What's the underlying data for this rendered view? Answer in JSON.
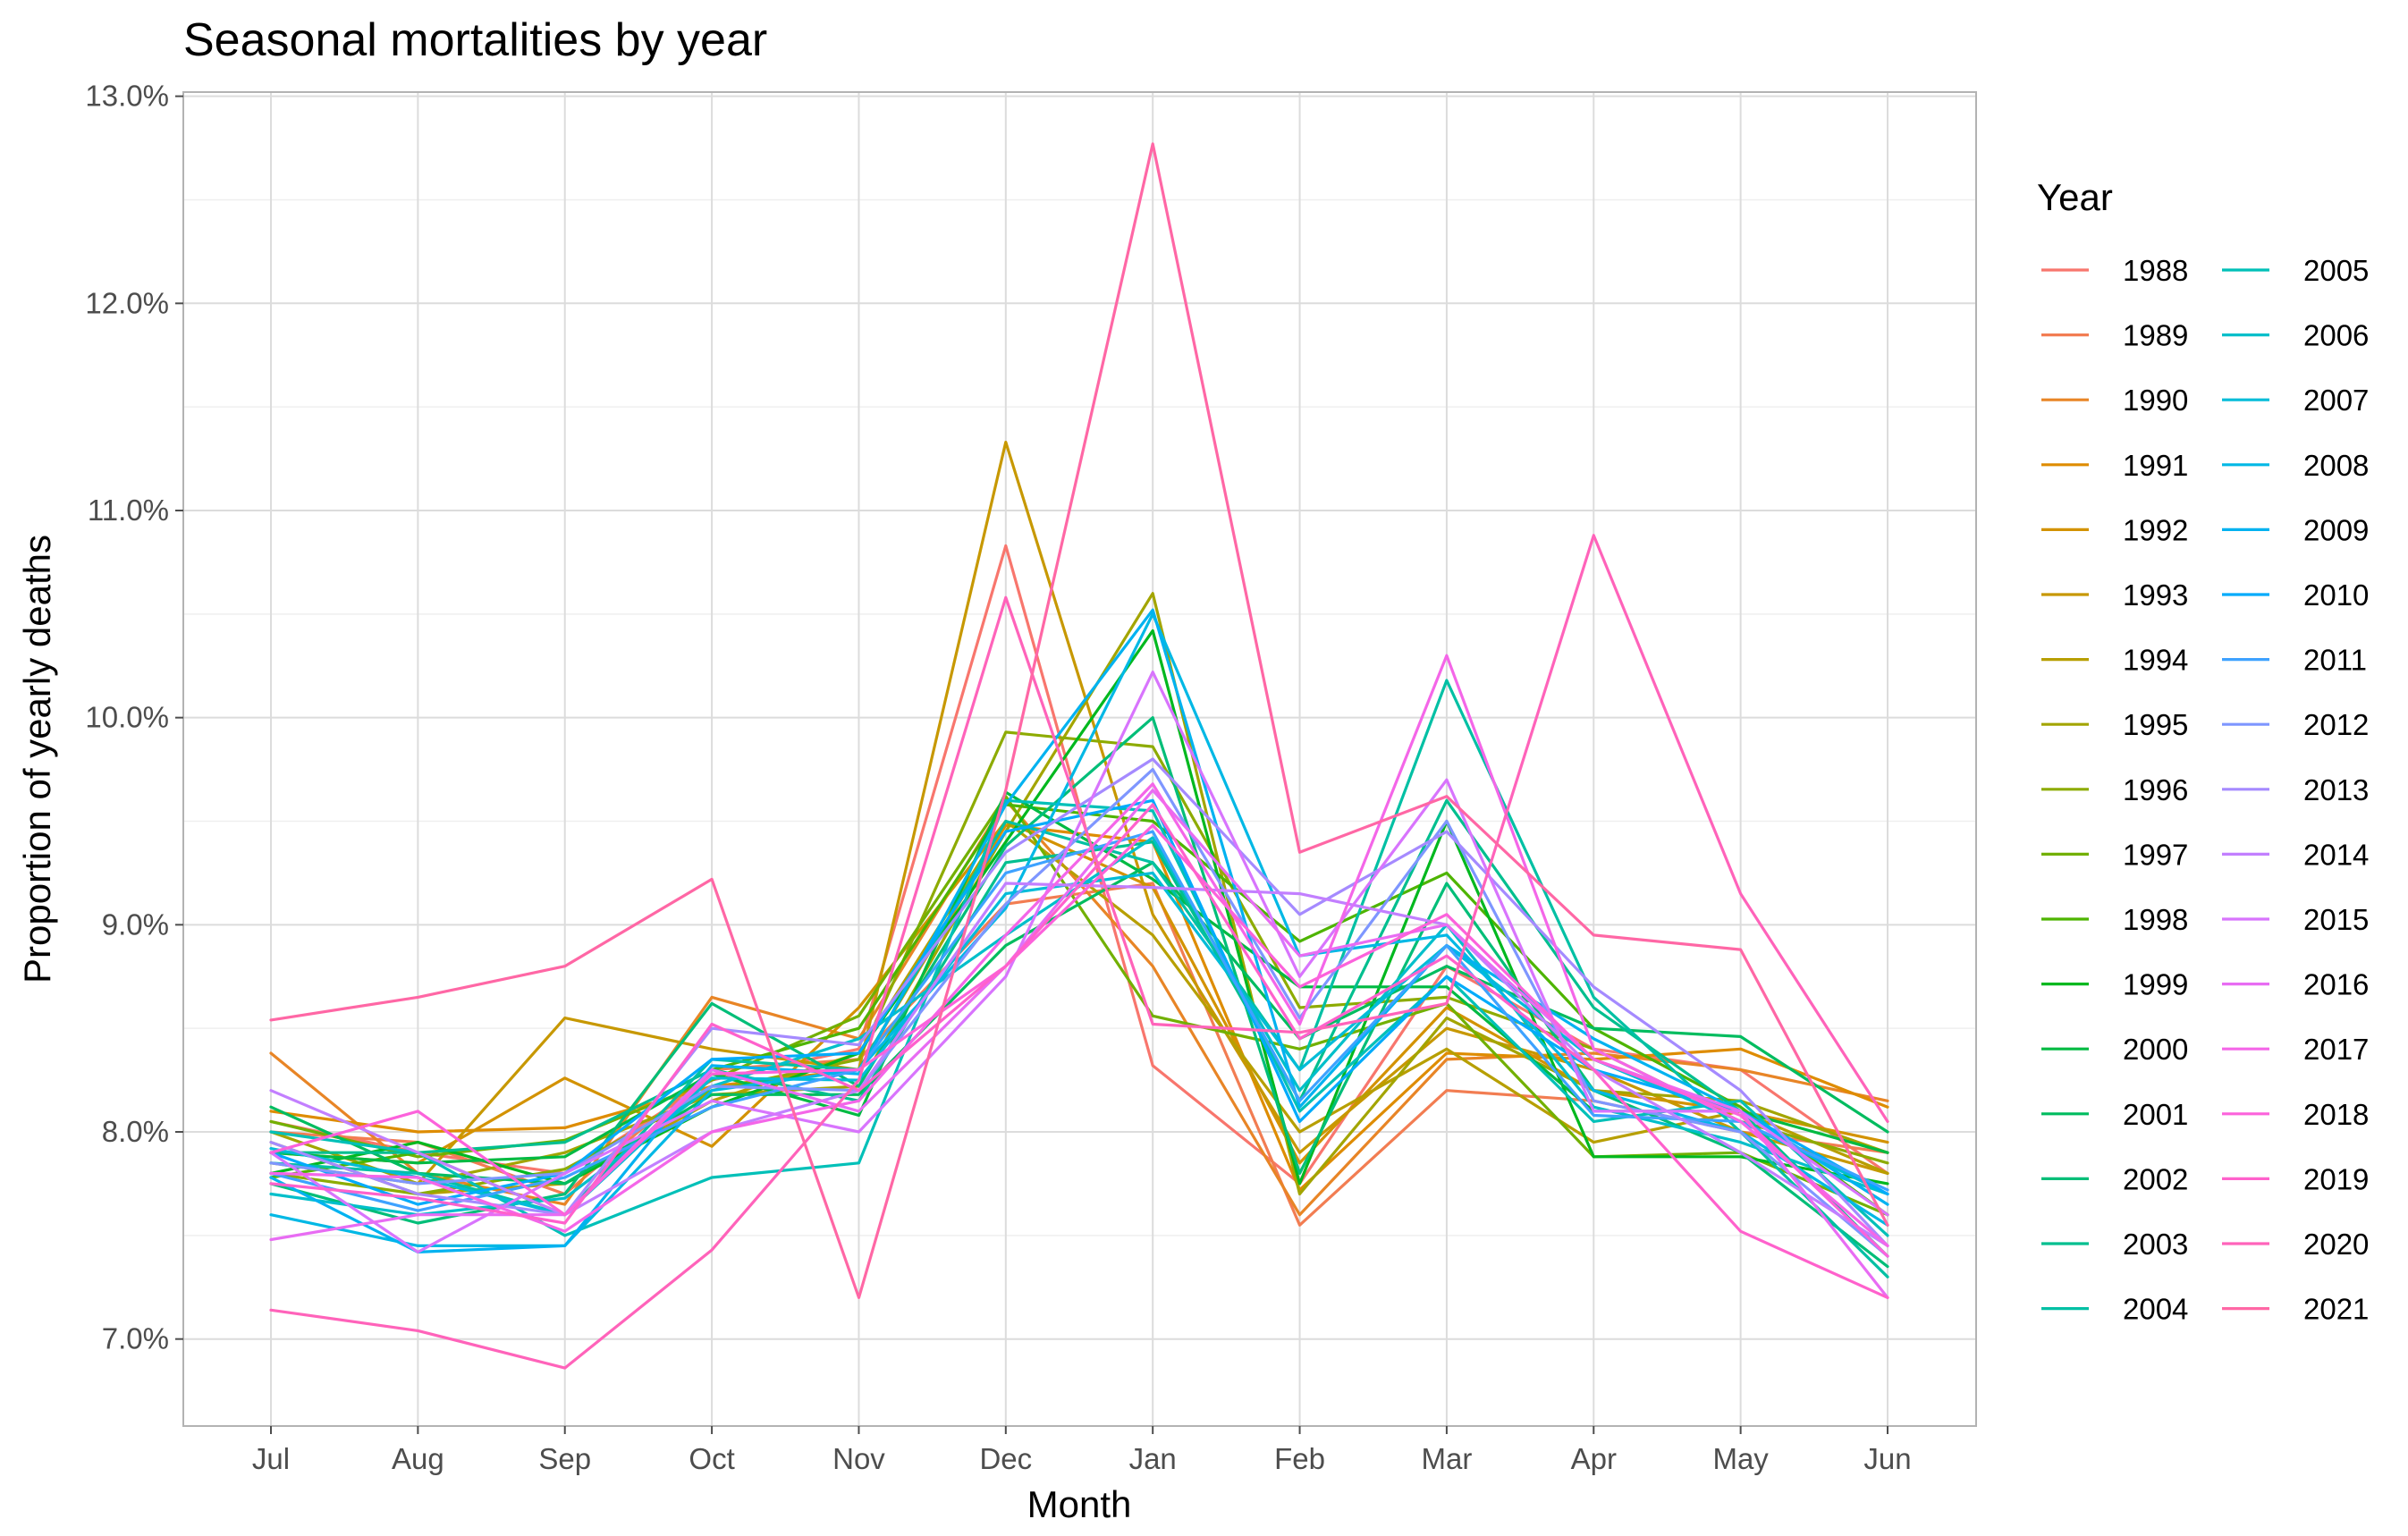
{
  "chart_data": {
    "type": "line",
    "title": "Seasonal mortalities by year",
    "xlabel": "Month",
    "ylabel": "Proportion of yearly deaths",
    "categories": [
      "Jul",
      "Aug",
      "Sep",
      "Oct",
      "Nov",
      "Dec",
      "Jan",
      "Feb",
      "Mar",
      "Apr",
      "May",
      "Jun"
    ],
    "ylim": [
      0.0658,
      0.1302
    ],
    "yticks": [
      0.07,
      0.08,
      0.09,
      0.1,
      0.11,
      0.12,
      0.13
    ],
    "ytick_labels": [
      "7.0%",
      "8.0%",
      "9.0%",
      "10.0%",
      "11.0%",
      "12.0%",
      "13.0%"
    ],
    "grid": true,
    "legend": {
      "title": "Year",
      "placement": "right",
      "columns": 2
    },
    "series": [
      {
        "name": "1988",
        "color": "#F8766D",
        "values": [
          0.0805,
          0.079,
          0.078,
          0.0825,
          0.084,
          0.1083,
          0.0832,
          0.0775,
          0.088,
          0.084,
          0.083,
          0.078
        ]
      },
      {
        "name": "1989",
        "color": "#F27D52",
        "values": [
          0.08,
          0.0795,
          0.077,
          0.083,
          0.0835,
          0.091,
          0.092,
          0.0755,
          0.082,
          0.0815,
          0.08,
          0.079
        ]
      },
      {
        "name": "1990",
        "color": "#E88526",
        "values": [
          0.0838,
          0.078,
          0.0765,
          0.0865,
          0.0845,
          0.096,
          0.088,
          0.076,
          0.0835,
          0.0838,
          0.083,
          0.0815
        ]
      },
      {
        "name": "1991",
        "color": "#DE8C00",
        "values": [
          0.081,
          0.08,
          0.0802,
          0.0822,
          0.083,
          0.0948,
          0.094,
          0.0772,
          0.0838,
          0.0835,
          0.084,
          0.0812
        ]
      },
      {
        "name": "1992",
        "color": "#D39200",
        "values": [
          0.079,
          0.0785,
          0.0826,
          0.0793,
          0.086,
          0.095,
          0.0918,
          0.0785,
          0.086,
          0.082,
          0.081,
          0.0795
        ]
      },
      {
        "name": "1993",
        "color": "#C79800",
        "values": [
          0.0785,
          0.0775,
          0.0855,
          0.084,
          0.083,
          0.1133,
          0.0905,
          0.079,
          0.085,
          0.083,
          0.08,
          0.078
        ]
      },
      {
        "name": "1994",
        "color": "#B79F00",
        "values": [
          0.0795,
          0.077,
          0.0775,
          0.0815,
          0.0838,
          0.095,
          0.0895,
          0.08,
          0.084,
          0.0795,
          0.081,
          0.078
        ]
      },
      {
        "name": "1995",
        "color": "#A3A500",
        "values": [
          0.08,
          0.0775,
          0.079,
          0.0818,
          0.0822,
          0.0945,
          0.106,
          0.077,
          0.0855,
          0.082,
          0.0815,
          0.079
        ]
      },
      {
        "name": "1996",
        "color": "#8DAB00",
        "values": [
          0.078,
          0.077,
          0.0782,
          0.082,
          0.0835,
          0.0993,
          0.0986,
          0.086,
          0.0865,
          0.084,
          0.0805,
          0.0785
        ]
      },
      {
        "name": "1997",
        "color": "#72B000",
        "values": [
          0.0805,
          0.0788,
          0.0796,
          0.0825,
          0.0856,
          0.0962,
          0.0856,
          0.084,
          0.0862,
          0.0788,
          0.079,
          0.076
        ]
      },
      {
        "name": "1998",
        "color": "#4EB400",
        "values": [
          0.0778,
          0.079,
          0.076,
          0.083,
          0.085,
          0.0958,
          0.095,
          0.0892,
          0.0925,
          0.085,
          0.0812,
          0.076
        ]
      },
      {
        "name": "1999",
        "color": "#00B81F",
        "values": [
          0.078,
          0.0795,
          0.0775,
          0.0812,
          0.0838,
          0.094,
          0.1042,
          0.0775,
          0.095,
          0.0788,
          0.0788,
          0.0775
        ]
      },
      {
        "name": "2000",
        "color": "#00BA42",
        "values": [
          0.079,
          0.0785,
          0.0788,
          0.0828,
          0.0808,
          0.0964,
          0.0922,
          0.087,
          0.087,
          0.081,
          0.081,
          0.079
        ]
      },
      {
        "name": "2001",
        "color": "#00BC5F",
        "values": [
          0.0812,
          0.078,
          0.0775,
          0.0818,
          0.0818,
          0.089,
          0.093,
          0.0845,
          0.088,
          0.085,
          0.0846,
          0.08
        ]
      },
      {
        "name": "2002",
        "color": "#00BE78",
        "values": [
          0.0775,
          0.0756,
          0.077,
          0.0862,
          0.0822,
          0.0938,
          0.1,
          0.078,
          0.092,
          0.082,
          0.079,
          0.0735
        ]
      },
      {
        "name": "2003",
        "color": "#00BF8F",
        "values": [
          0.079,
          0.079,
          0.0795,
          0.083,
          0.0815,
          0.093,
          0.094,
          0.0815,
          0.096,
          0.086,
          0.081,
          0.074
        ]
      },
      {
        "name": "2004",
        "color": "#00C0A4",
        "values": [
          0.0785,
          0.078,
          0.076,
          0.0835,
          0.083,
          0.095,
          0.093,
          0.083,
          0.1018,
          0.0865,
          0.08,
          0.073
        ]
      },
      {
        "name": "2005",
        "color": "#00C0B8",
        "values": [
          0.08,
          0.079,
          0.075,
          0.0778,
          0.0785,
          0.096,
          0.0955,
          0.081,
          0.0875,
          0.0805,
          0.0815,
          0.075
        ]
      },
      {
        "name": "2006",
        "color": "#00BFCA",
        "values": [
          0.077,
          0.076,
          0.0768,
          0.0822,
          0.0845,
          0.0895,
          0.0942,
          0.082,
          0.09,
          0.0812,
          0.0795,
          0.077
        ]
      },
      {
        "name": "2007",
        "color": "#00BCD8",
        "values": [
          0.0792,
          0.0778,
          0.076,
          0.0826,
          0.0825,
          0.0915,
          0.0925,
          0.083,
          0.089,
          0.0835,
          0.0805,
          0.077
        ]
      },
      {
        "name": "2008",
        "color": "#00B8E5",
        "values": [
          0.076,
          0.0745,
          0.0745,
          0.082,
          0.083,
          0.0908,
          0.105,
          0.0885,
          0.0895,
          0.082,
          0.08,
          0.0755
        ]
      },
      {
        "name": "2009",
        "color": "#00B2F0",
        "values": [
          0.0778,
          0.0742,
          0.0745,
          0.0832,
          0.0828,
          0.0958,
          0.1052,
          0.0812,
          0.089,
          0.0845,
          0.081,
          0.0765
        ]
      },
      {
        "name": "2010",
        "color": "#00ABFB",
        "values": [
          0.079,
          0.0765,
          0.078,
          0.0835,
          0.0838,
          0.0945,
          0.096,
          0.0805,
          0.0875,
          0.083,
          0.081,
          0.077
        ]
      },
      {
        "name": "2011",
        "color": "#3EA2FF",
        "values": [
          0.078,
          0.0762,
          0.0778,
          0.0812,
          0.083,
          0.0925,
          0.0945,
          0.0815,
          0.089,
          0.0808,
          0.0805,
          0.0772
        ]
      },
      {
        "name": "2012",
        "color": "#7E96FF",
        "values": [
          0.0785,
          0.0775,
          0.078,
          0.0822,
          0.082,
          0.091,
          0.0975,
          0.0855,
          0.095,
          0.0815,
          0.08,
          0.074
        ]
      },
      {
        "name": "2013",
        "color": "#A58AFF",
        "values": [
          0.0795,
          0.077,
          0.076,
          0.085,
          0.0842,
          0.0935,
          0.098,
          0.0905,
          0.0945,
          0.087,
          0.082,
          0.0745
        ]
      },
      {
        "name": "2014",
        "color": "#C27FFF",
        "values": [
          0.082,
          0.079,
          0.076,
          0.08,
          0.082,
          0.092,
          0.0918,
          0.0915,
          0.09,
          0.083,
          0.079,
          0.0745
        ]
      },
      {
        "name": "2015",
        "color": "#D874FD",
        "values": [
          0.079,
          0.0742,
          0.078,
          0.0815,
          0.08,
          0.0875,
          0.1022,
          0.0875,
          0.097,
          0.081,
          0.081,
          0.076
        ]
      },
      {
        "name": "2016",
        "color": "#E86CF3",
        "values": [
          0.0748,
          0.076,
          0.076,
          0.083,
          0.081,
          0.088,
          0.0965,
          0.0885,
          0.09,
          0.0835,
          0.081,
          0.072
        ]
      },
      {
        "name": "2017",
        "color": "#F466E8",
        "values": [
          0.078,
          0.0778,
          0.0752,
          0.08,
          0.0815,
          0.0895,
          0.0968,
          0.0852,
          0.103,
          0.084,
          0.0805,
          0.0745
        ]
      },
      {
        "name": "2018",
        "color": "#FC62DB",
        "values": [
          0.079,
          0.081,
          0.076,
          0.0828,
          0.083,
          0.088,
          0.0948,
          0.087,
          0.0905,
          0.0835,
          0.0808,
          0.074
        ]
      },
      {
        "name": "2019",
        "color": "#FF61CC",
        "values": [
          0.0775,
          0.0768,
          0.0756,
          0.0852,
          0.082,
          0.088,
          0.0958,
          0.0845,
          0.0885,
          0.083,
          0.0752,
          0.072
        ]
      },
      {
        "name": "2020",
        "color": "#FF63BA",
        "values": [
          0.0714,
          0.0704,
          0.0686,
          0.0743,
          0.0825,
          0.1058,
          0.0852,
          0.0848,
          0.0862,
          0.1088,
          0.0915,
          0.0805
        ]
      },
      {
        "name": "2021",
        "color": "#FF67A5",
        "values": [
          0.0854,
          0.0865,
          0.088,
          0.0922,
          0.072,
          0.0965,
          0.1277,
          0.0935,
          0.0962,
          0.0895,
          0.0888,
          0.0755
        ]
      }
    ]
  }
}
